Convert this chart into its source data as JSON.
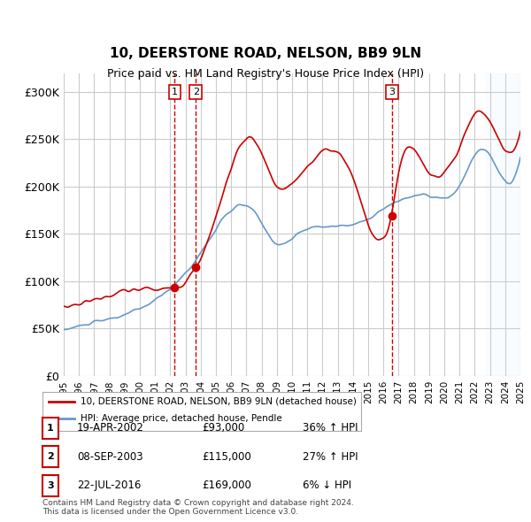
{
  "title": "10, DEERSTONE ROAD, NELSON, BB9 9LN",
  "subtitle": "Price paid vs. HM Land Registry's House Price Index (HPI)",
  "ylabel_ticks": [
    "£0",
    "£50K",
    "£100K",
    "£150K",
    "£200K",
    "£250K",
    "£300K"
  ],
  "ytick_values": [
    0,
    50000,
    100000,
    150000,
    200000,
    250000,
    300000
  ],
  "ylim": [
    0,
    320000
  ],
  "sale_dates": [
    "2002-04-19",
    "2003-09-08",
    "2016-07-22"
  ],
  "sale_prices": [
    93000,
    115000,
    169000
  ],
  "sale_labels": [
    "1",
    "2",
    "3"
  ],
  "sale_info": [
    {
      "label": "1",
      "date": "19-APR-2002",
      "price": "£93,000",
      "change": "36% ↑ HPI"
    },
    {
      "label": "2",
      "date": "08-SEP-2003",
      "price": "£115,000",
      "change": "27% ↑ HPI"
    },
    {
      "label": "3",
      "date": "22-JUL-2016",
      "price": "£169,000",
      "change": "6% ↓ HPI"
    }
  ],
  "legend_entries": [
    {
      "label": "10, DEERSTONE ROAD, NELSON, BB9 9LN (detached house)",
      "color": "#cc0000"
    },
    {
      "label": "HPI: Average price, detached house, Pendle",
      "color": "#6699cc"
    }
  ],
  "footer": "Contains HM Land Registry data © Crown copyright and database right 2024.\nThis data is licensed under the Open Government Licence v3.0.",
  "bg_color": "#ffffff",
  "grid_color": "#cccccc",
  "hpi_line_color": "#6699cc",
  "price_line_color": "#cc0000",
  "sale_marker_color": "#cc0000",
  "dashed_line_color": "#cc0000",
  "box_color": "#cc0000",
  "shade_color": "#ddeeff"
}
